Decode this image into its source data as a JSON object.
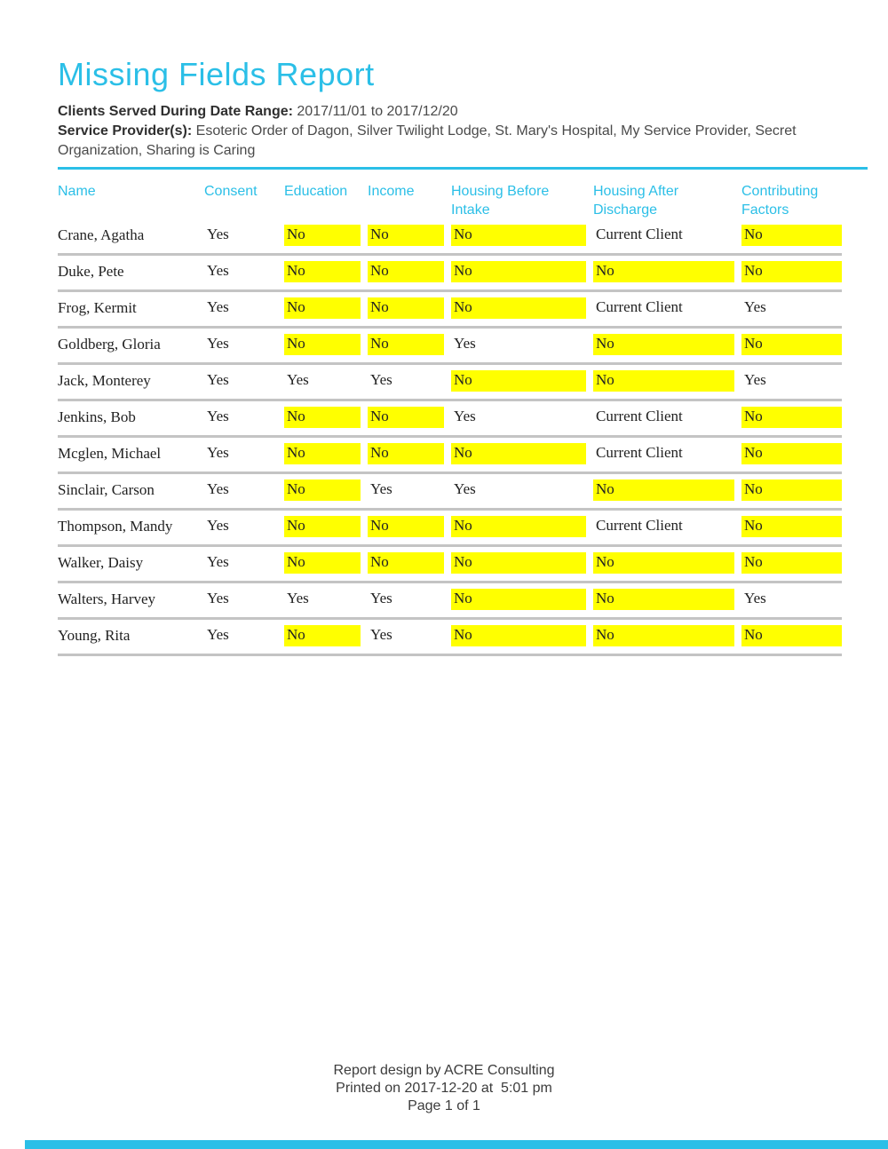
{
  "colors": {
    "accent": "#2BBFE7",
    "highlight": "#FFFF00",
    "row_separator": "#C4C4C4",
    "body_text": "#222222",
    "meta_text": "#3C3C3C"
  },
  "header": {
    "title": "Missing Fields Report",
    "date_range_label": "Clients Served During Date Range:",
    "date_range_value": "2017/11/01 to 2017/12/20",
    "providers_label": "Service Provider(s):",
    "providers_value": "Esoteric Order of Dagon, Silver Twilight Lodge, St. Mary's Hospital, My Service Provider, Secret Organization, Sharing is Caring"
  },
  "table": {
    "columns": [
      {
        "key": "name",
        "label": "Name"
      },
      {
        "key": "consent",
        "label": "Consent"
      },
      {
        "key": "education",
        "label": "Education"
      },
      {
        "key": "income",
        "label": "Income"
      },
      {
        "key": "housing-before-intake",
        "label": "Housing Before Intake"
      },
      {
        "key": "housing-after-discharge",
        "label": "Housing After Discharge"
      },
      {
        "key": "contributing-factors",
        "label": "Contributing Factors"
      }
    ],
    "rows": [
      {
        "name": "Crane, Agatha",
        "cells": [
          {
            "text": "Yes",
            "highlight": false
          },
          {
            "text": "No",
            "highlight": true
          },
          {
            "text": "No",
            "highlight": true
          },
          {
            "text": "No",
            "highlight": true
          },
          {
            "text": "Current Client",
            "highlight": false
          },
          {
            "text": "No",
            "highlight": true
          }
        ]
      },
      {
        "name": "Duke, Pete",
        "cells": [
          {
            "text": "Yes",
            "highlight": false
          },
          {
            "text": "No",
            "highlight": true
          },
          {
            "text": "No",
            "highlight": true
          },
          {
            "text": "No",
            "highlight": true
          },
          {
            "text": "No",
            "highlight": true
          },
          {
            "text": "No",
            "highlight": true
          }
        ]
      },
      {
        "name": "Frog, Kermit",
        "cells": [
          {
            "text": "Yes",
            "highlight": false
          },
          {
            "text": "No",
            "highlight": true
          },
          {
            "text": "No",
            "highlight": true
          },
          {
            "text": "No",
            "highlight": true
          },
          {
            "text": "Current Client",
            "highlight": false
          },
          {
            "text": "Yes",
            "highlight": false
          }
        ]
      },
      {
        "name": "Goldberg, Gloria",
        "cells": [
          {
            "text": "Yes",
            "highlight": false
          },
          {
            "text": "No",
            "highlight": true
          },
          {
            "text": "No",
            "highlight": true
          },
          {
            "text": "Yes",
            "highlight": false
          },
          {
            "text": "No",
            "highlight": true
          },
          {
            "text": "No",
            "highlight": true
          }
        ]
      },
      {
        "name": "Jack, Monterey",
        "cells": [
          {
            "text": "Yes",
            "highlight": false
          },
          {
            "text": "Yes",
            "highlight": false
          },
          {
            "text": "Yes",
            "highlight": false
          },
          {
            "text": "No",
            "highlight": true
          },
          {
            "text": "No",
            "highlight": true
          },
          {
            "text": "Yes",
            "highlight": false
          }
        ]
      },
      {
        "name": "Jenkins, Bob",
        "cells": [
          {
            "text": "Yes",
            "highlight": false
          },
          {
            "text": "No",
            "highlight": true
          },
          {
            "text": "No",
            "highlight": true
          },
          {
            "text": "Yes",
            "highlight": false
          },
          {
            "text": "Current Client",
            "highlight": false
          },
          {
            "text": "No",
            "highlight": true
          }
        ]
      },
      {
        "name": "Mcglen, Michael",
        "cells": [
          {
            "text": "Yes",
            "highlight": false
          },
          {
            "text": "No",
            "highlight": true
          },
          {
            "text": "No",
            "highlight": true
          },
          {
            "text": "No",
            "highlight": true
          },
          {
            "text": "Current Client",
            "highlight": false
          },
          {
            "text": "No",
            "highlight": true
          }
        ]
      },
      {
        "name": "Sinclair, Carson",
        "cells": [
          {
            "text": "Yes",
            "highlight": false
          },
          {
            "text": "No",
            "highlight": true
          },
          {
            "text": "Yes",
            "highlight": false
          },
          {
            "text": "Yes",
            "highlight": false
          },
          {
            "text": "No",
            "highlight": true
          },
          {
            "text": "No",
            "highlight": true
          }
        ]
      },
      {
        "name": "Thompson, Mandy",
        "cells": [
          {
            "text": "Yes",
            "highlight": false
          },
          {
            "text": "No",
            "highlight": true
          },
          {
            "text": "No",
            "highlight": true
          },
          {
            "text": "No",
            "highlight": true
          },
          {
            "text": "Current Client",
            "highlight": false
          },
          {
            "text": "No",
            "highlight": true
          }
        ]
      },
      {
        "name": "Walker, Daisy",
        "cells": [
          {
            "text": "Yes",
            "highlight": false
          },
          {
            "text": "No",
            "highlight": true
          },
          {
            "text": "No",
            "highlight": true
          },
          {
            "text": "No",
            "highlight": true
          },
          {
            "text": "No",
            "highlight": true
          },
          {
            "text": "No",
            "highlight": true
          }
        ]
      },
      {
        "name": "Walters, Harvey",
        "cells": [
          {
            "text": "Yes",
            "highlight": false
          },
          {
            "text": "Yes",
            "highlight": false
          },
          {
            "text": "Yes",
            "highlight": false
          },
          {
            "text": "No",
            "highlight": true
          },
          {
            "text": "No",
            "highlight": true
          },
          {
            "text": "Yes",
            "highlight": false
          }
        ]
      },
      {
        "name": "Young, Rita",
        "cells": [
          {
            "text": "Yes",
            "highlight": false
          },
          {
            "text": "No",
            "highlight": true
          },
          {
            "text": "Yes",
            "highlight": false
          },
          {
            "text": "No",
            "highlight": true
          },
          {
            "text": "No",
            "highlight": true
          },
          {
            "text": "No",
            "highlight": true
          }
        ]
      }
    ]
  },
  "footer": {
    "line1": "Report design by ACRE Consulting",
    "line2": "Printed on 2017-12-20 at  5:01 pm",
    "line3": "Page 1 of 1"
  }
}
